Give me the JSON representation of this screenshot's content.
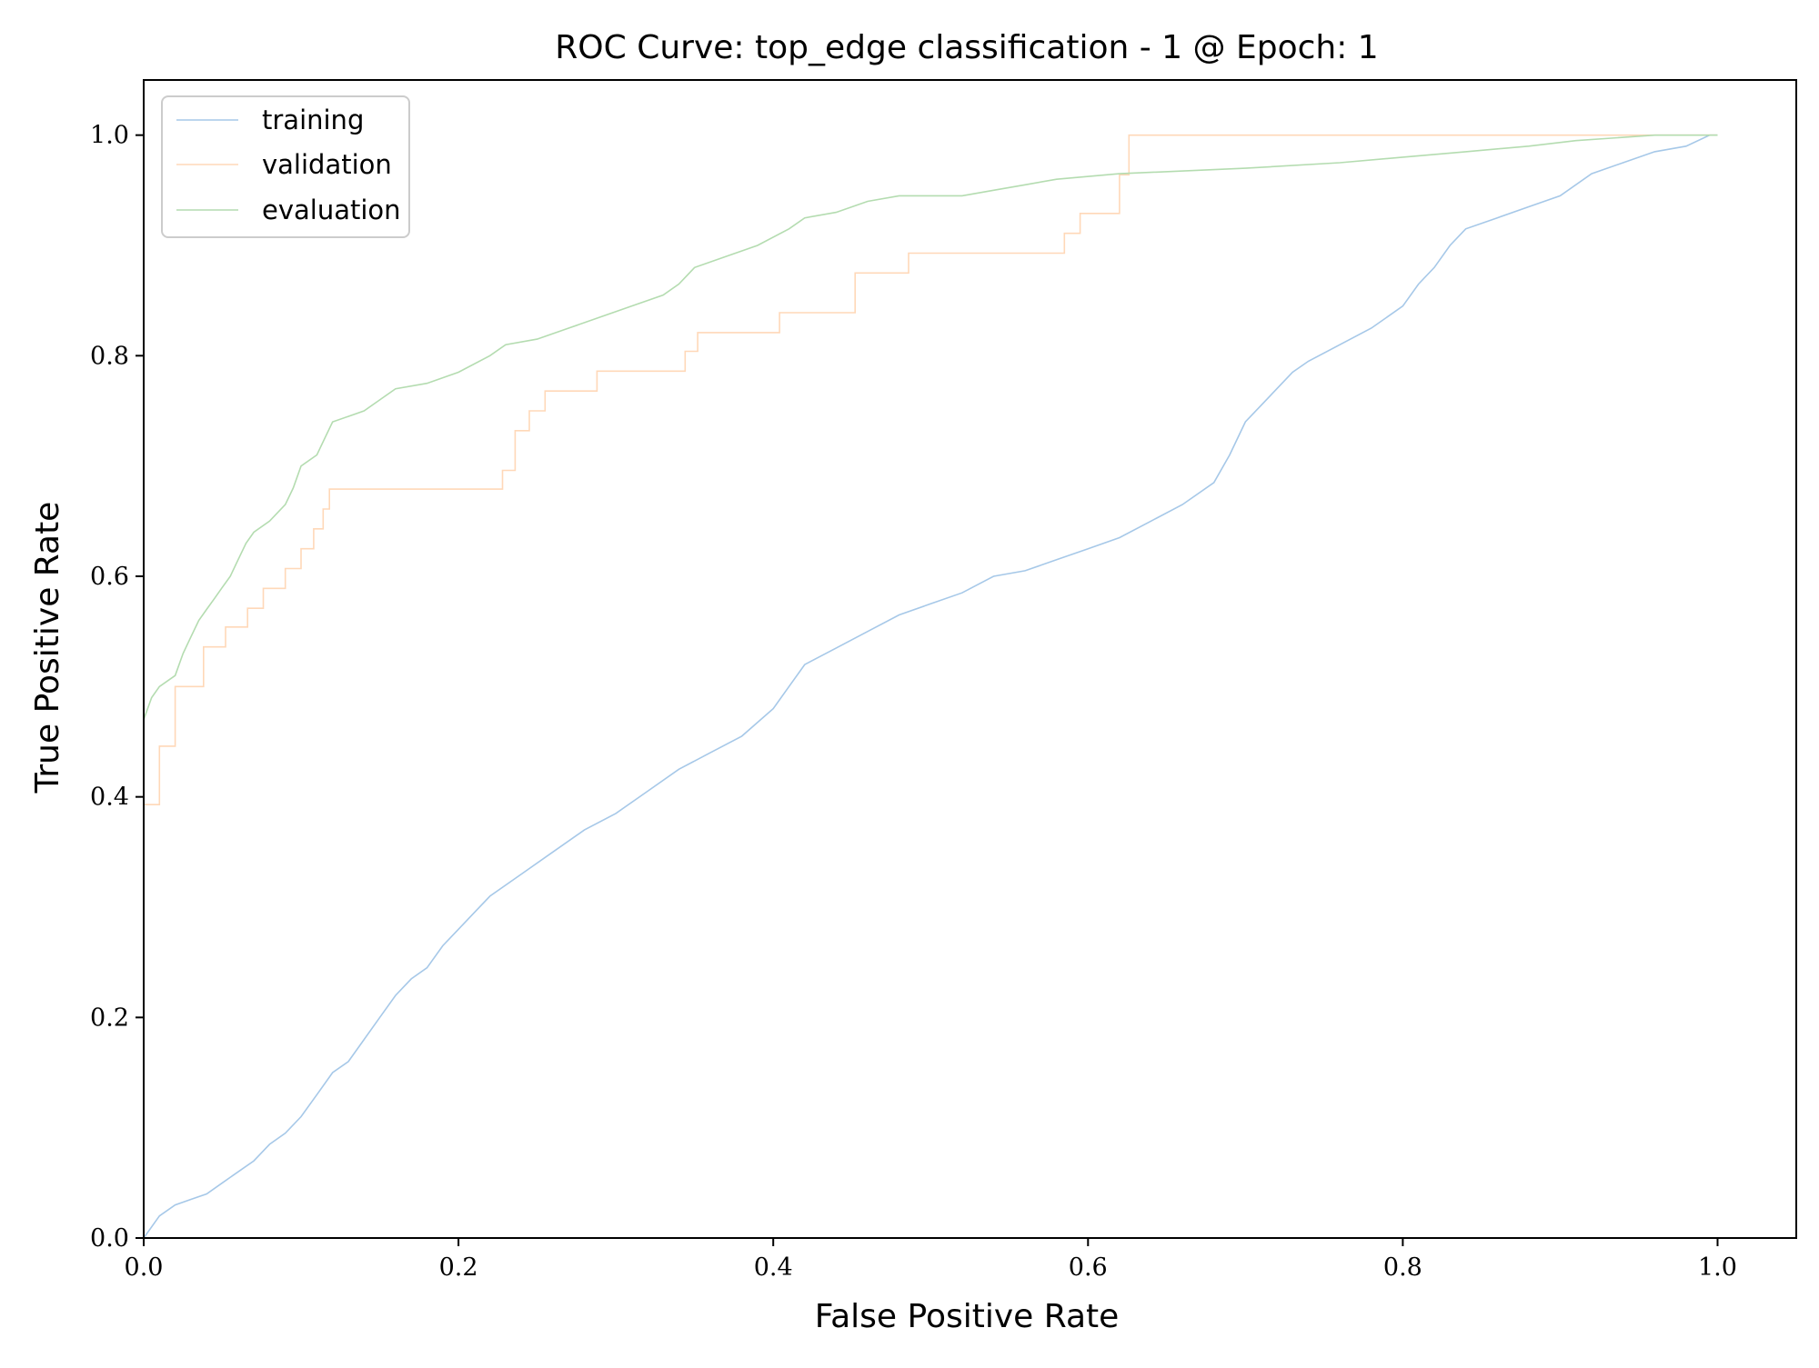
{
  "chart_data": {
    "type": "line",
    "title": "ROC Curve: top_edge classification - 1 @ Epoch: 1",
    "xlabel": "False Positive Rate",
    "ylabel": "True Positive Rate",
    "xlim": [
      0.0,
      1.05
    ],
    "ylim": [
      0.0,
      1.05
    ],
    "xticks": [
      0.0,
      0.2,
      0.4,
      0.6,
      0.8,
      1.0
    ],
    "yticks": [
      0.0,
      0.2,
      0.4,
      0.6,
      0.8,
      1.0
    ],
    "xtick_labels": [
      "0.0",
      "0.2",
      "0.4",
      "0.6",
      "0.8",
      "1.0"
    ],
    "ytick_labels": [
      "0.0",
      "0.2",
      "0.4",
      "0.6",
      "0.8",
      "1.0"
    ],
    "grid": false,
    "legend_position": "top-left",
    "series": [
      {
        "name": "training",
        "color": "#a6c8e8",
        "points": [
          [
            0.0,
            0.0
          ],
          [
            0.01,
            0.02
          ],
          [
            0.02,
            0.03
          ],
          [
            0.03,
            0.035
          ],
          [
            0.04,
            0.04
          ],
          [
            0.05,
            0.05
          ],
          [
            0.06,
            0.06
          ],
          [
            0.07,
            0.07
          ],
          [
            0.08,
            0.085
          ],
          [
            0.09,
            0.095
          ],
          [
            0.1,
            0.11
          ],
          [
            0.11,
            0.13
          ],
          [
            0.12,
            0.15
          ],
          [
            0.13,
            0.16
          ],
          [
            0.14,
            0.18
          ],
          [
            0.15,
            0.2
          ],
          [
            0.16,
            0.22
          ],
          [
            0.17,
            0.235
          ],
          [
            0.18,
            0.245
          ],
          [
            0.19,
            0.265
          ],
          [
            0.2,
            0.28
          ],
          [
            0.21,
            0.295
          ],
          [
            0.22,
            0.31
          ],
          [
            0.24,
            0.33
          ],
          [
            0.26,
            0.35
          ],
          [
            0.28,
            0.37
          ],
          [
            0.3,
            0.385
          ],
          [
            0.32,
            0.405
          ],
          [
            0.34,
            0.425
          ],
          [
            0.36,
            0.44
          ],
          [
            0.38,
            0.455
          ],
          [
            0.4,
            0.48
          ],
          [
            0.41,
            0.5
          ],
          [
            0.42,
            0.52
          ],
          [
            0.44,
            0.535
          ],
          [
            0.46,
            0.55
          ],
          [
            0.48,
            0.565
          ],
          [
            0.5,
            0.575
          ],
          [
            0.52,
            0.585
          ],
          [
            0.54,
            0.6
          ],
          [
            0.56,
            0.605
          ],
          [
            0.58,
            0.615
          ],
          [
            0.6,
            0.625
          ],
          [
            0.62,
            0.635
          ],
          [
            0.64,
            0.65
          ],
          [
            0.66,
            0.665
          ],
          [
            0.68,
            0.685
          ],
          [
            0.69,
            0.71
          ],
          [
            0.7,
            0.74
          ],
          [
            0.71,
            0.755
          ],
          [
            0.72,
            0.77
          ],
          [
            0.73,
            0.785
          ],
          [
            0.74,
            0.795
          ],
          [
            0.76,
            0.81
          ],
          [
            0.78,
            0.825
          ],
          [
            0.8,
            0.845
          ],
          [
            0.81,
            0.865
          ],
          [
            0.82,
            0.88
          ],
          [
            0.83,
            0.9
          ],
          [
            0.84,
            0.915
          ],
          [
            0.86,
            0.925
          ],
          [
            0.88,
            0.935
          ],
          [
            0.9,
            0.945
          ],
          [
            0.92,
            0.965
          ],
          [
            0.94,
            0.975
          ],
          [
            0.96,
            0.985
          ],
          [
            0.98,
            0.99
          ],
          [
            0.995,
            1.0
          ],
          [
            1.0,
            1.0
          ]
        ]
      },
      {
        "name": "validation",
        "color": "#ffd8b8",
        "points": [
          [
            0.0,
            0.0
          ],
          [
            0.0,
            0.393
          ],
          [
            0.01,
            0.393
          ],
          [
            0.01,
            0.446
          ],
          [
            0.02,
            0.446
          ],
          [
            0.02,
            0.5
          ],
          [
            0.038,
            0.5
          ],
          [
            0.038,
            0.536
          ],
          [
            0.052,
            0.536
          ],
          [
            0.052,
            0.554
          ],
          [
            0.066,
            0.554
          ],
          [
            0.066,
            0.571
          ],
          [
            0.076,
            0.571
          ],
          [
            0.076,
            0.589
          ],
          [
            0.09,
            0.589
          ],
          [
            0.09,
            0.607
          ],
          [
            0.1,
            0.607
          ],
          [
            0.1,
            0.625
          ],
          [
            0.108,
            0.625
          ],
          [
            0.108,
            0.643
          ],
          [
            0.114,
            0.643
          ],
          [
            0.114,
            0.661
          ],
          [
            0.118,
            0.661
          ],
          [
            0.118,
            0.679
          ],
          [
            0.228,
            0.679
          ],
          [
            0.228,
            0.696
          ],
          [
            0.236,
            0.696
          ],
          [
            0.236,
            0.732
          ],
          [
            0.245,
            0.732
          ],
          [
            0.245,
            0.75
          ],
          [
            0.255,
            0.75
          ],
          [
            0.255,
            0.768
          ],
          [
            0.288,
            0.768
          ],
          [
            0.288,
            0.786
          ],
          [
            0.344,
            0.786
          ],
          [
            0.344,
            0.804
          ],
          [
            0.352,
            0.804
          ],
          [
            0.352,
            0.821
          ],
          [
            0.404,
            0.821
          ],
          [
            0.404,
            0.839
          ],
          [
            0.452,
            0.839
          ],
          [
            0.452,
            0.875
          ],
          [
            0.486,
            0.875
          ],
          [
            0.486,
            0.893
          ],
          [
            0.585,
            0.893
          ],
          [
            0.585,
            0.911
          ],
          [
            0.595,
            0.911
          ],
          [
            0.595,
            0.929
          ],
          [
            0.62,
            0.929
          ],
          [
            0.62,
            0.964
          ],
          [
            0.626,
            0.964
          ],
          [
            0.626,
            1.0
          ],
          [
            1.0,
            1.0
          ]
        ]
      },
      {
        "name": "evaluation",
        "color": "#b4dcb0",
        "points": [
          [
            0.0,
            0.0
          ],
          [
            0.0,
            0.47
          ],
          [
            0.005,
            0.49
          ],
          [
            0.01,
            0.5
          ],
          [
            0.02,
            0.51
          ],
          [
            0.025,
            0.53
          ],
          [
            0.03,
            0.545
          ],
          [
            0.035,
            0.56
          ],
          [
            0.04,
            0.57
          ],
          [
            0.045,
            0.58
          ],
          [
            0.05,
            0.59
          ],
          [
            0.055,
            0.6
          ],
          [
            0.06,
            0.615
          ],
          [
            0.065,
            0.63
          ],
          [
            0.07,
            0.64
          ],
          [
            0.08,
            0.65
          ],
          [
            0.09,
            0.665
          ],
          [
            0.095,
            0.68
          ],
          [
            0.1,
            0.7
          ],
          [
            0.11,
            0.71
          ],
          [
            0.115,
            0.725
          ],
          [
            0.12,
            0.74
          ],
          [
            0.13,
            0.745
          ],
          [
            0.14,
            0.75
          ],
          [
            0.15,
            0.76
          ],
          [
            0.16,
            0.77
          ],
          [
            0.18,
            0.775
          ],
          [
            0.2,
            0.785
          ],
          [
            0.22,
            0.8
          ],
          [
            0.23,
            0.81
          ],
          [
            0.25,
            0.815
          ],
          [
            0.27,
            0.825
          ],
          [
            0.29,
            0.835
          ],
          [
            0.31,
            0.845
          ],
          [
            0.33,
            0.855
          ],
          [
            0.34,
            0.865
          ],
          [
            0.35,
            0.88
          ],
          [
            0.37,
            0.89
          ],
          [
            0.39,
            0.9
          ],
          [
            0.41,
            0.915
          ],
          [
            0.42,
            0.925
          ],
          [
            0.44,
            0.93
          ],
          [
            0.46,
            0.94
          ],
          [
            0.48,
            0.945
          ],
          [
            0.52,
            0.945
          ],
          [
            0.54,
            0.95
          ],
          [
            0.56,
            0.955
          ],
          [
            0.58,
            0.96
          ],
          [
            0.62,
            0.965
          ],
          [
            0.7,
            0.97
          ],
          [
            0.76,
            0.975
          ],
          [
            0.8,
            0.98
          ],
          [
            0.84,
            0.985
          ],
          [
            0.88,
            0.99
          ],
          [
            0.91,
            0.995
          ],
          [
            0.96,
            1.0
          ],
          [
            1.0,
            1.0
          ]
        ]
      }
    ]
  }
}
